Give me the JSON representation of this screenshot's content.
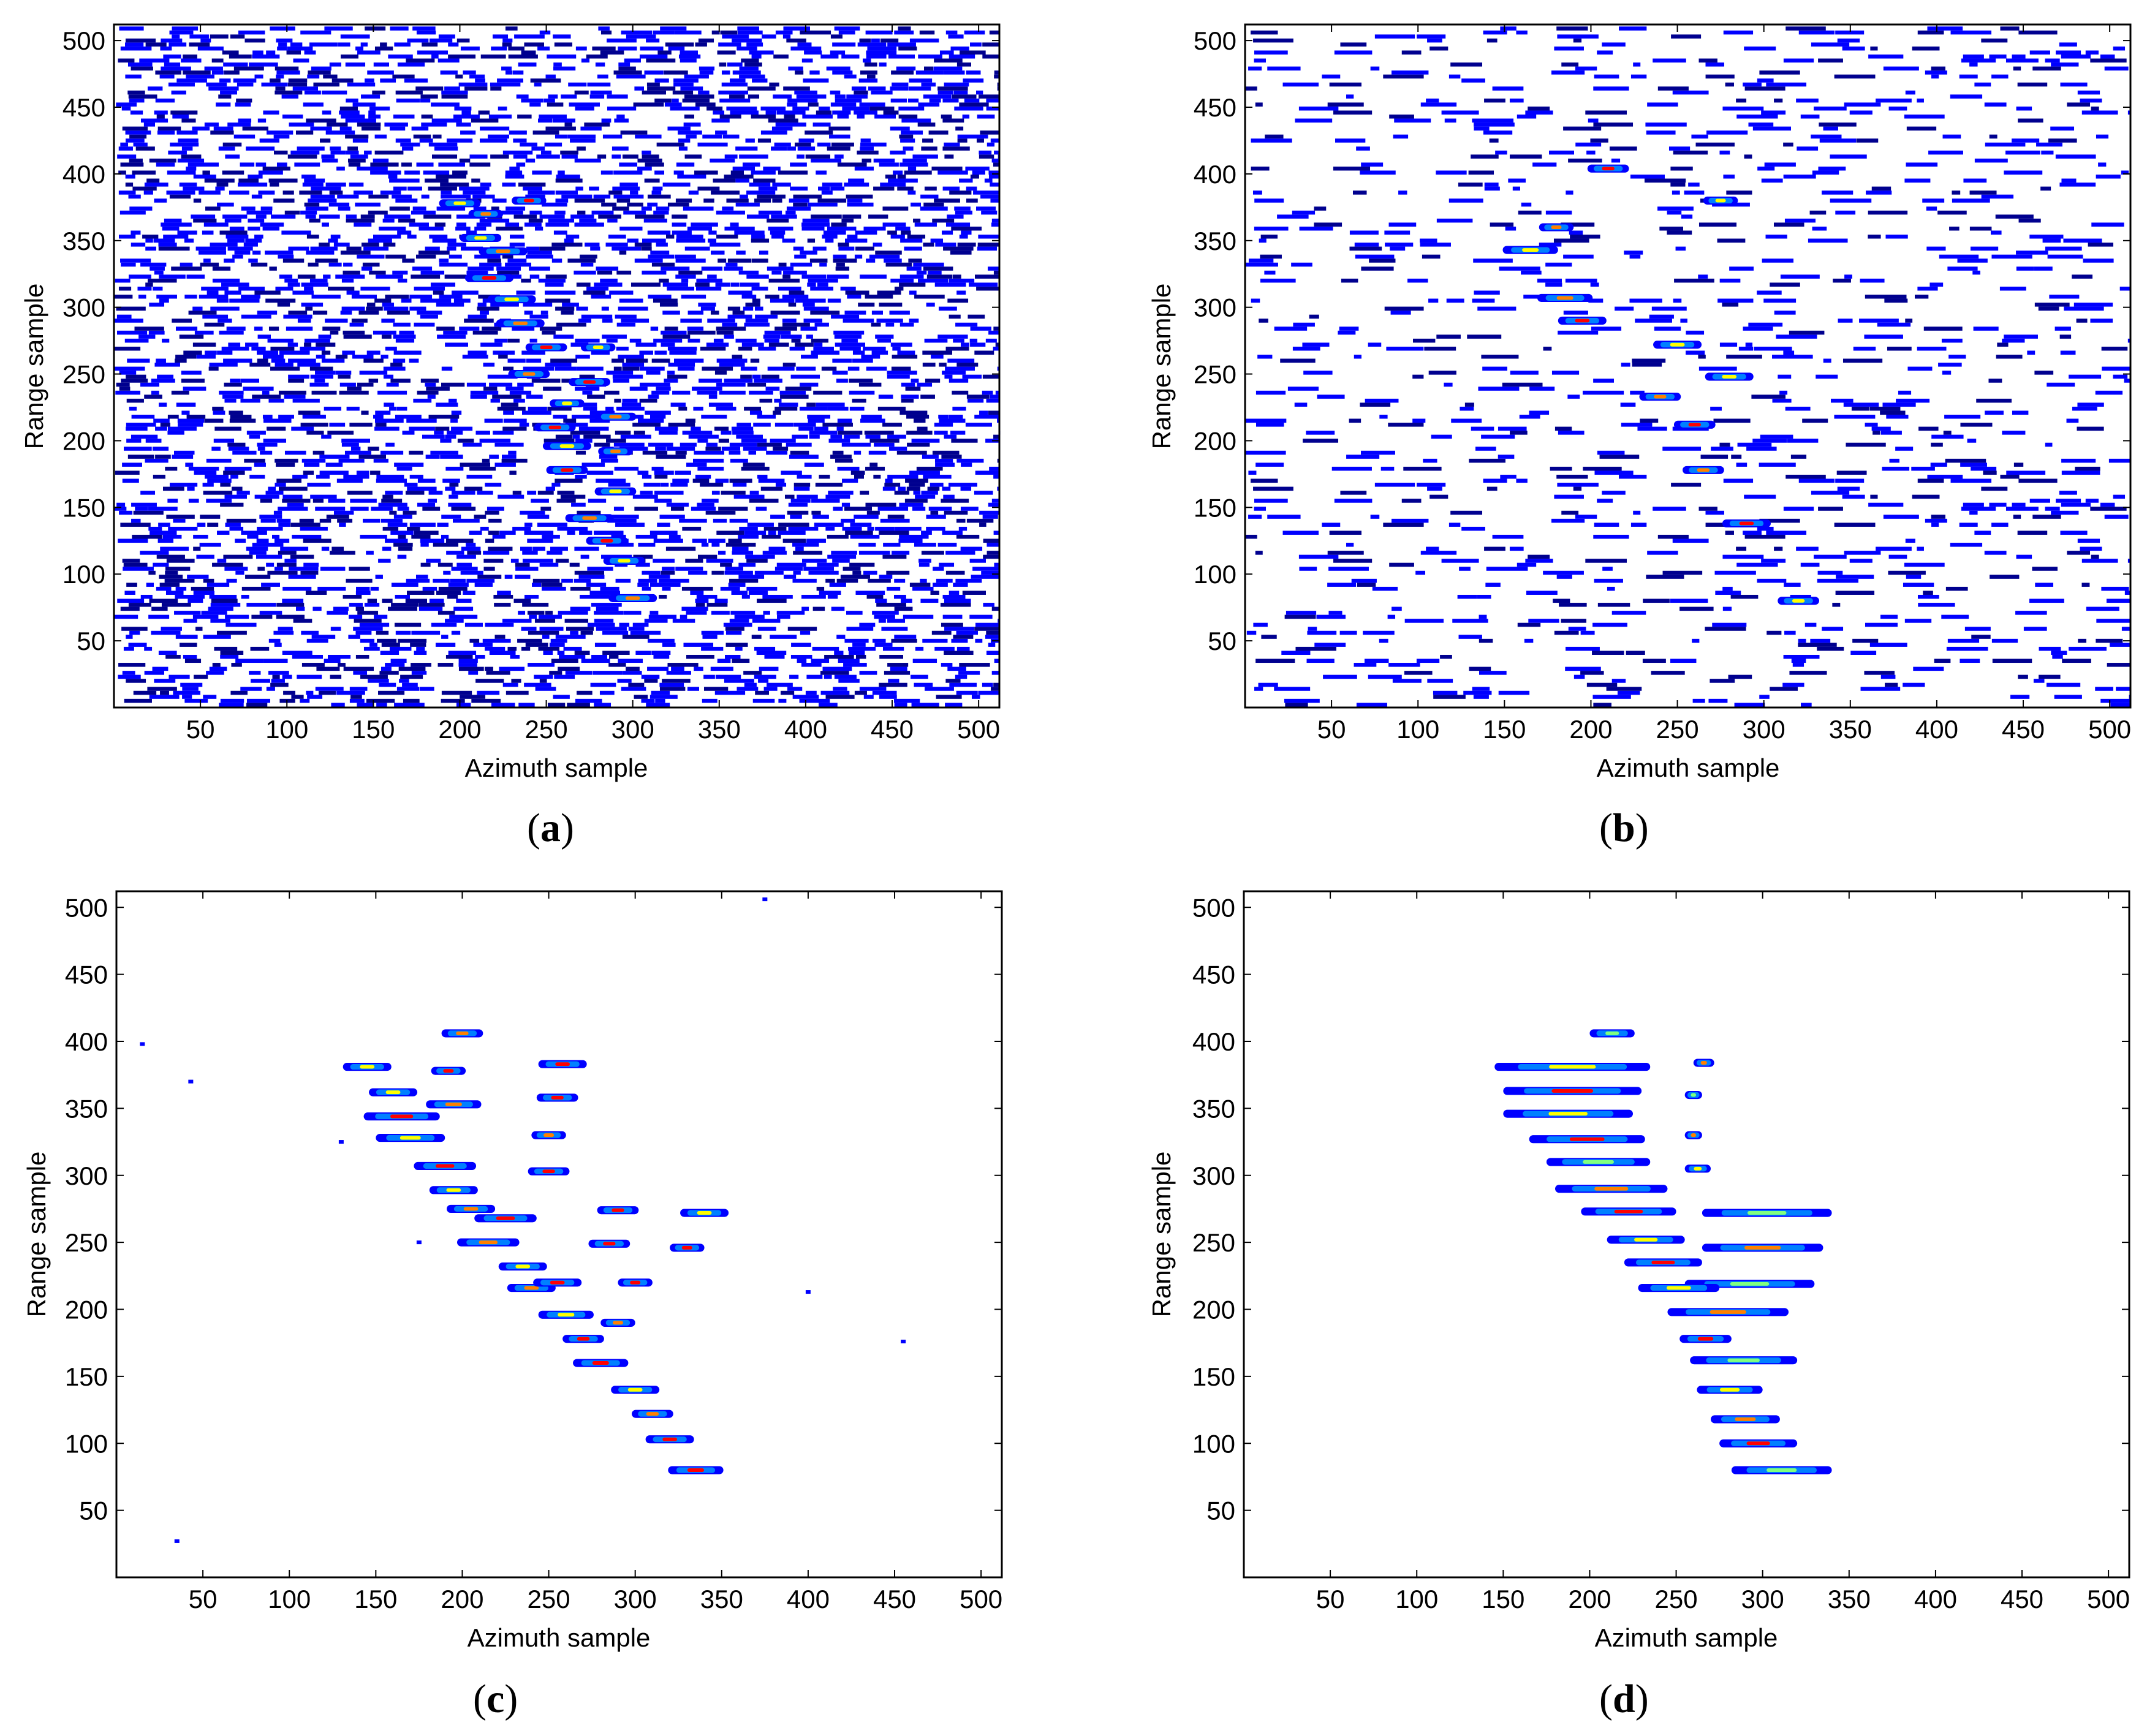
{
  "figure": {
    "background": "#ffffff",
    "colormap": [
      "#00008f",
      "#0000ff",
      "#0080ff",
      "#00ffff",
      "#80ff80",
      "#ffff00",
      "#ff8000",
      "#ff0000"
    ]
  },
  "chart_data": [
    {
      "type": "heatmap",
      "panel_label": "a",
      "xlabel": "Azimuth sample",
      "ylabel": "Range sample",
      "xlim": [
        0,
        512
      ],
      "ylim": [
        0,
        512
      ],
      "xticks": [
        50,
        100,
        150,
        200,
        250,
        300,
        350,
        400,
        450,
        500
      ],
      "yticks": [
        50,
        100,
        150,
        200,
        250,
        300,
        350,
        400,
        450,
        500
      ],
      "noise_density": 0.55,
      "noise_rows": 14,
      "hot_streaks": [
        [
          200,
          378,
          12
        ],
        [
          215,
          370,
          10
        ],
        [
          240,
          380,
          10
        ],
        [
          212,
          352,
          12
        ],
        [
          225,
          342,
          14
        ],
        [
          217,
          322,
          14
        ],
        [
          230,
          306,
          14
        ],
        [
          235,
          288,
          14
        ],
        [
          250,
          270,
          12
        ],
        [
          280,
          270,
          10
        ],
        [
          240,
          250,
          12
        ],
        [
          275,
          244,
          12
        ],
        [
          262,
          228,
          10
        ],
        [
          290,
          218,
          12
        ],
        [
          255,
          210,
          12
        ],
        [
          262,
          196,
          14
        ],
        [
          290,
          192,
          10
        ],
        [
          262,
          178,
          12
        ],
        [
          290,
          162,
          12
        ],
        [
          275,
          142,
          14
        ],
        [
          285,
          125,
          12
        ],
        [
          295,
          110,
          12
        ],
        [
          300,
          82,
          14
        ]
      ]
    },
    {
      "type": "heatmap",
      "panel_label": "b",
      "xlabel": "Azimuth sample",
      "ylabel": "Range sample",
      "xlim": [
        0,
        512
      ],
      "ylim": [
        0,
        512
      ],
      "xticks": [
        50,
        100,
        150,
        200,
        250,
        300,
        350,
        400,
        450,
        500
      ],
      "yticks": [
        50,
        100,
        150,
        200,
        250,
        300,
        350,
        400,
        450,
        500
      ],
      "noise_density": 0.18,
      "noise_rows": 20,
      "hot_streaks": [
        [
          165,
          343,
          16
        ],
        [
          185,
          307,
          16
        ],
        [
          195,
          290,
          14
        ],
        [
          250,
          272,
          14
        ],
        [
          240,
          233,
          12
        ],
        [
          260,
          212,
          12
        ],
        [
          280,
          248,
          14
        ],
        [
          265,
          178,
          12
        ],
        [
          290,
          138,
          14
        ],
        [
          320,
          80,
          12
        ],
        [
          180,
          360,
          10
        ],
        [
          210,
          404,
          12
        ],
        [
          275,
          380,
          10
        ]
      ]
    },
    {
      "type": "heatmap",
      "panel_label": "c",
      "xlabel": "Azimuth sample",
      "ylabel": "Range sample",
      "xlim": [
        0,
        512
      ],
      "ylim": [
        0,
        512
      ],
      "xticks": [
        50,
        100,
        150,
        200,
        250,
        300,
        350,
        400,
        450,
        500
      ],
      "yticks": [
        50,
        100,
        150,
        200,
        250,
        300,
        350,
        400,
        450,
        500
      ],
      "sparse_points": [
        [
          15,
          398
        ],
        [
          43,
          370
        ],
        [
          375,
          506
        ],
        [
          455,
          176
        ],
        [
          400,
          213
        ],
        [
          35,
          27
        ],
        [
          130,
          325
        ],
        [
          175,
          250
        ]
      ],
      "streaks": [
        [
          145,
          381,
          14
        ],
        [
          200,
          406,
          12
        ],
        [
          192,
          378,
          10
        ],
        [
          258,
          383,
          14
        ],
        [
          160,
          362,
          14
        ],
        [
          195,
          353,
          16
        ],
        [
          255,
          358,
          12
        ],
        [
          165,
          344,
          22
        ],
        [
          170,
          328,
          20
        ],
        [
          250,
          330,
          10
        ],
        [
          190,
          307,
          18
        ],
        [
          250,
          303,
          12
        ],
        [
          195,
          289,
          14
        ],
        [
          205,
          275,
          14
        ],
        [
          225,
          268,
          18
        ],
        [
          290,
          274,
          12
        ],
        [
          340,
          272,
          14
        ],
        [
          215,
          250,
          18
        ],
        [
          285,
          249,
          12
        ],
        [
          330,
          246,
          10
        ],
        [
          235,
          232,
          14
        ],
        [
          240,
          216,
          14
        ],
        [
          255,
          220,
          14
        ],
        [
          300,
          220,
          10
        ],
        [
          260,
          196,
          16
        ],
        [
          290,
          190,
          10
        ],
        [
          270,
          178,
          12
        ],
        [
          280,
          160,
          16
        ],
        [
          300,
          140,
          14
        ],
        [
          310,
          122,
          12
        ],
        [
          320,
          103,
          14
        ],
        [
          335,
          80,
          16
        ]
      ]
    },
    {
      "type": "heatmap",
      "panel_label": "d",
      "xlabel": "Azimuth sample",
      "ylabel": "Range sample",
      "xlim": [
        0,
        512
      ],
      "ylim": [
        0,
        512
      ],
      "xticks": [
        50,
        100,
        150,
        200,
        250,
        300,
        350,
        400,
        450,
        500
      ],
      "yticks": [
        50,
        100,
        150,
        200,
        250,
        300,
        350,
        400,
        450,
        500
      ],
      "streaks": [
        [
          200,
          226,
          406
        ],
        [
          145,
          235,
          381
        ],
        [
          260,
          272,
          384
        ],
        [
          150,
          230,
          363
        ],
        [
          255,
          265,
          360
        ],
        [
          150,
          225,
          346
        ],
        [
          255,
          265,
          330
        ],
        [
          165,
          232,
          327
        ],
        [
          175,
          235,
          310
        ],
        [
          255,
          270,
          305
        ],
        [
          180,
          245,
          290
        ],
        [
          195,
          250,
          273
        ],
        [
          265,
          340,
          272
        ],
        [
          210,
          255,
          252
        ],
        [
          265,
          335,
          246
        ],
        [
          220,
          265,
          235
        ],
        [
          255,
          330,
          219
        ],
        [
          228,
          275,
          216
        ],
        [
          245,
          315,
          198
        ],
        [
          252,
          282,
          178
        ],
        [
          258,
          320,
          162
        ],
        [
          262,
          300,
          140
        ],
        [
          270,
          310,
          118
        ],
        [
          275,
          320,
          100
        ],
        [
          282,
          340,
          80
        ]
      ]
    }
  ]
}
